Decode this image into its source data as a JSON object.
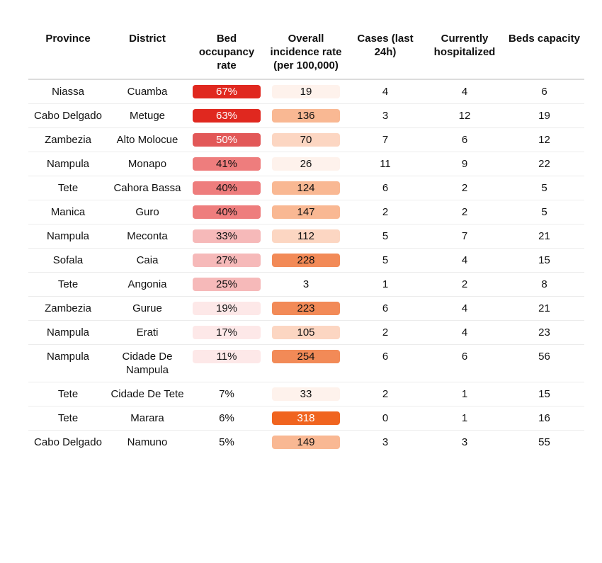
{
  "chart_data": {
    "type": "table",
    "columns": [
      "Province",
      "District",
      "Bed occupancy rate",
      "Overall incidence rate (per 100,000)",
      "Cases (last 24h)",
      "Currently hospitalized",
      "Beds capacity"
    ],
    "rows": [
      {
        "province": "Niassa",
        "district": "Cuamba",
        "bed_occupancy": "67%",
        "occupancy_value": 67,
        "incidence": "19",
        "incidence_value": 19,
        "cases": "4",
        "hospitalized": "4",
        "beds": "6"
      },
      {
        "province": "Cabo Delgado",
        "district": "Metuge",
        "bed_occupancy": "63%",
        "occupancy_value": 63,
        "incidence": "136",
        "incidence_value": 136,
        "cases": "3",
        "hospitalized": "12",
        "beds": "19"
      },
      {
        "province": "Zambezia",
        "district": "Alto Molocue",
        "bed_occupancy": "50%",
        "occupancy_value": 50,
        "incidence": "70",
        "incidence_value": 70,
        "cases": "7",
        "hospitalized": "6",
        "beds": "12"
      },
      {
        "province": "Nampula",
        "district": "Monapo",
        "bed_occupancy": "41%",
        "occupancy_value": 41,
        "incidence": "26",
        "incidence_value": 26,
        "cases": "11",
        "hospitalized": "9",
        "beds": "22"
      },
      {
        "province": "Tete",
        "district": "Cahora Bassa",
        "bed_occupancy": "40%",
        "occupancy_value": 40,
        "incidence": "124",
        "incidence_value": 124,
        "cases": "6",
        "hospitalized": "2",
        "beds": "5"
      },
      {
        "province": "Manica",
        "district": "Guro",
        "bed_occupancy": "40%",
        "occupancy_value": 40,
        "incidence": "147",
        "incidence_value": 147,
        "cases": "2",
        "hospitalized": "2",
        "beds": "5"
      },
      {
        "province": "Nampula",
        "district": "Meconta",
        "bed_occupancy": "33%",
        "occupancy_value": 33,
        "incidence": "112",
        "incidence_value": 112,
        "cases": "5",
        "hospitalized": "7",
        "beds": "21"
      },
      {
        "province": "Sofala",
        "district": "Caia",
        "bed_occupancy": "27%",
        "occupancy_value": 27,
        "incidence": "228",
        "incidence_value": 228,
        "cases": "5",
        "hospitalized": "4",
        "beds": "15"
      },
      {
        "province": "Tete",
        "district": "Angonia",
        "bed_occupancy": "25%",
        "occupancy_value": 25,
        "incidence": "3",
        "incidence_value": 3,
        "cases": "1",
        "hospitalized": "2",
        "beds": "8"
      },
      {
        "province": "Zambezia",
        "district": "Gurue",
        "bed_occupancy": "19%",
        "occupancy_value": 19,
        "incidence": "223",
        "incidence_value": 223,
        "cases": "6",
        "hospitalized": "4",
        "beds": "21"
      },
      {
        "province": "Nampula",
        "district": "Erati",
        "bed_occupancy": "17%",
        "occupancy_value": 17,
        "incidence": "105",
        "incidence_value": 105,
        "cases": "2",
        "hospitalized": "4",
        "beds": "23"
      },
      {
        "province": "Nampula",
        "district": "Cidade De Nampula",
        "bed_occupancy": "11%",
        "occupancy_value": 11,
        "incidence": "254",
        "incidence_value": 254,
        "cases": "6",
        "hospitalized": "6",
        "beds": "56"
      },
      {
        "province": "Tete",
        "district": "Cidade De Tete",
        "bed_occupancy": "7%",
        "occupancy_value": 7,
        "incidence": "33",
        "incidence_value": 33,
        "cases": "2",
        "hospitalized": "1",
        "beds": "15"
      },
      {
        "province": "Tete",
        "district": "Marara",
        "bed_occupancy": "6%",
        "occupancy_value": 6,
        "incidence": "318",
        "incidence_value": 318,
        "cases": "0",
        "hospitalized": "1",
        "beds": "16"
      },
      {
        "province": "Cabo Delgado",
        "district": "Namuno",
        "bed_occupancy": "5%",
        "occupancy_value": 5,
        "incidence": "149",
        "incidence_value": 149,
        "cases": "3",
        "hospitalized": "3",
        "beds": "55"
      }
    ],
    "colors": {
      "occupancy_scale": [
        "#ffffff",
        "#fde8e8",
        "#f6b9b9",
        "#ee7d7d",
        "#e25858",
        "#e0281f"
      ],
      "incidence_scale": [
        "#ffffff",
        "#fef2ec",
        "#fcd6c2",
        "#f9b893",
        "#f28a57",
        "#f0641f"
      ]
    }
  }
}
